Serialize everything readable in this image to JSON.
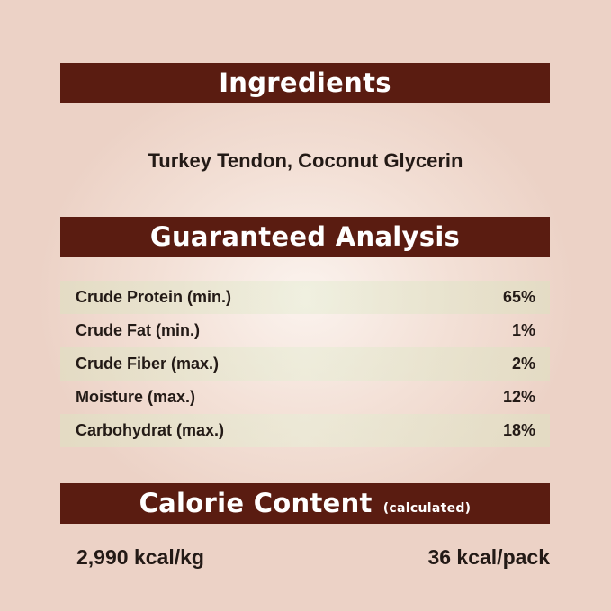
{
  "ingredients": {
    "title": "Ingredients",
    "text": "Turkey Tendon, Coconut Glycerin"
  },
  "analysis": {
    "title": "Guaranteed Analysis",
    "rows": [
      {
        "label": "Crude Protein (min.)",
        "value": "65%"
      },
      {
        "label": "Crude Fat (min.)",
        "value": "1%"
      },
      {
        "label": "Crude Fiber (max.)",
        "value": "2%"
      },
      {
        "label": "Moisture (max.)",
        "value": "12%"
      },
      {
        "label": "Carbohydrat (max.)",
        "value": "18%"
      }
    ]
  },
  "calorie": {
    "title": "Calorie Content",
    "note": "(calculated)",
    "per_kg": "2,990 kcal/kg",
    "per_pack": "36 kcal/pack"
  },
  "colors": {
    "banner": "#5a1c11",
    "background": "#ecd2c6"
  }
}
